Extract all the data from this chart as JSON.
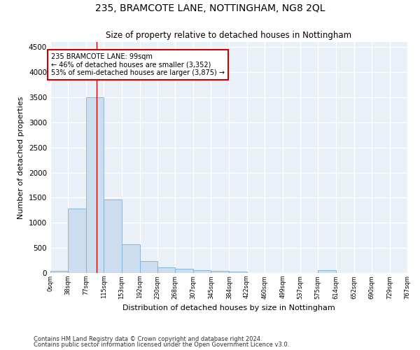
{
  "title": "235, BRAMCOTE LANE, NOTTINGHAM, NG8 2QL",
  "subtitle": "Size of property relative to detached houses in Nottingham",
  "xlabel": "Distribution of detached houses by size in Nottingham",
  "ylabel": "Number of detached properties",
  "bar_color": "#ccddf0",
  "bar_edge_color": "#7bafd4",
  "background_color": "#eaf0f8",
  "grid_color": "#ffffff",
  "annotation_box_color": "#cc0000",
  "property_line_color": "#cc0000",
  "property_size": 99,
  "annotation_text_line1": "235 BRAMCOTE LANE: 99sqm",
  "annotation_text_line2": "← 46% of detached houses are smaller (3,352)",
  "annotation_text_line3": "53% of semi-detached houses are larger (3,875) →",
  "bins": [
    0,
    38,
    77,
    115,
    153,
    192,
    230,
    268,
    307,
    345,
    384,
    422,
    460,
    499,
    537,
    575,
    614,
    652,
    690,
    729,
    767
  ],
  "bin_labels": [
    "0sqm",
    "38sqm",
    "77sqm",
    "115sqm",
    "153sqm",
    "192sqm",
    "230sqm",
    "268sqm",
    "307sqm",
    "345sqm",
    "384sqm",
    "422sqm",
    "460sqm",
    "499sqm",
    "537sqm",
    "575sqm",
    "614sqm",
    "652sqm",
    "690sqm",
    "729sqm",
    "767sqm"
  ],
  "values": [
    40,
    1280,
    3500,
    1470,
    570,
    240,
    115,
    80,
    55,
    45,
    30,
    0,
    0,
    0,
    0,
    55,
    0,
    0,
    0,
    0
  ],
  "ylim": [
    0,
    4600
  ],
  "yticks": [
    0,
    500,
    1000,
    1500,
    2000,
    2500,
    3000,
    3500,
    4000,
    4500
  ],
  "footer_line1": "Contains HM Land Registry data © Crown copyright and database right 2024.",
  "footer_line2": "Contains public sector information licensed under the Open Government Licence v3.0."
}
